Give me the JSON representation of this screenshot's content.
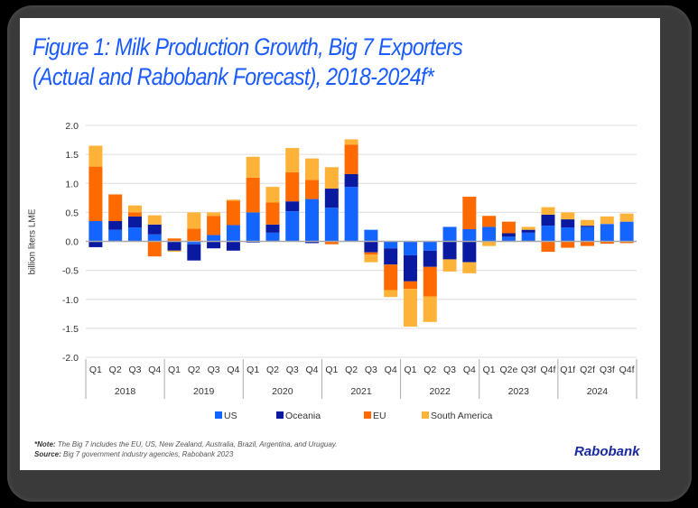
{
  "title_line1": "Figure 1: Milk Production Growth, Big 7 Exporters",
  "title_line2": "(Actual and Rabobank Forecast), 2018-2024f*",
  "note_label": "*Note:",
  "note_text": " The Big 7 includes the EU, US, New Zealand, Australia, Brazil, Argentina, and Uruguay.",
  "source_label": "Source:",
  "source_text": " Big 7 government industry agencies, Rabobank 2023",
  "logo": "Rabobank",
  "chart_data": {
    "type": "bar",
    "stacked": true,
    "title": "Figure 1: Milk Production Growth, Big 7 Exporters (Actual and Rabobank Forecast), 2018-2024f*",
    "xlabel": "",
    "ylabel": "billion liters LME",
    "ylim": [
      -2.0,
      2.0
    ],
    "yticks": [
      "2.0",
      "1.5",
      "1.0",
      "0.5",
      "0.0",
      "-0.5",
      "-1.0",
      "-1.5",
      "-2.0"
    ],
    "ytick_values": [
      2.0,
      1.5,
      1.0,
      0.5,
      0.0,
      -0.5,
      -1.0,
      -1.5,
      -2.0
    ],
    "grid": true,
    "legend": "bottom",
    "years": [
      "2018",
      "2019",
      "2020",
      "2021",
      "2022",
      "2023",
      "2024"
    ],
    "categories": [
      "Q1",
      "Q2",
      "Q3",
      "Q4",
      "Q1",
      "Q2",
      "Q3",
      "Q4",
      "Q1",
      "Q2",
      "Q3",
      "Q4",
      "Q1",
      "Q2",
      "Q3",
      "Q4",
      "Q1",
      "Q2",
      "Q3",
      "Q4",
      "Q1",
      "Q2e",
      "Q3f",
      "Q4f",
      "Q1f",
      "Q2f",
      "Q3f",
      "Q4f"
    ],
    "series": [
      {
        "name": "US",
        "color": "#1464ff",
        "values": [
          0.35,
          0.2,
          0.24,
          0.12,
          0.0,
          -0.05,
          0.11,
          0.28,
          0.5,
          0.15,
          0.52,
          0.73,
          0.58,
          0.94,
          0.2,
          -0.12,
          -0.24,
          -0.16,
          0.25,
          0.21,
          0.25,
          0.08,
          0.15,
          0.27,
          0.24,
          0.25,
          0.3,
          0.34
        ]
      },
      {
        "name": "Oceania",
        "color": "#0a1aa0",
        "values": [
          -0.1,
          0.15,
          0.19,
          0.17,
          -0.16,
          -0.28,
          -0.12,
          -0.16,
          -0.02,
          0.14,
          0.17,
          -0.03,
          0.33,
          0.22,
          -0.19,
          -0.28,
          -0.45,
          -0.28,
          -0.31,
          -0.36,
          0.0,
          0.06,
          0.05,
          0.19,
          0.14,
          0.02,
          0.0,
          0.0
        ]
      },
      {
        "name": "EU",
        "color": "#ff6a00",
        "values": [
          0.94,
          0.46,
          0.07,
          -0.26,
          0.05,
          0.22,
          0.33,
          0.42,
          0.6,
          0.38,
          0.5,
          0.33,
          -0.05,
          0.51,
          -0.04,
          -0.44,
          -0.13,
          -0.51,
          0.0,
          0.56,
          0.19,
          0.2,
          0.0,
          -0.18,
          -0.11,
          -0.08,
          -0.04,
          -0.03
        ]
      },
      {
        "name": "South America",
        "color": "#ffb238",
        "values": [
          0.36,
          0.0,
          0.12,
          0.16,
          -0.02,
          0.28,
          0.06,
          0.02,
          0.36,
          0.27,
          0.42,
          0.37,
          0.37,
          0.09,
          -0.13,
          -0.12,
          -0.65,
          -0.44,
          -0.21,
          -0.19,
          -0.08,
          0.0,
          0.05,
          0.13,
          0.12,
          0.1,
          0.13,
          0.14
        ]
      }
    ]
  }
}
